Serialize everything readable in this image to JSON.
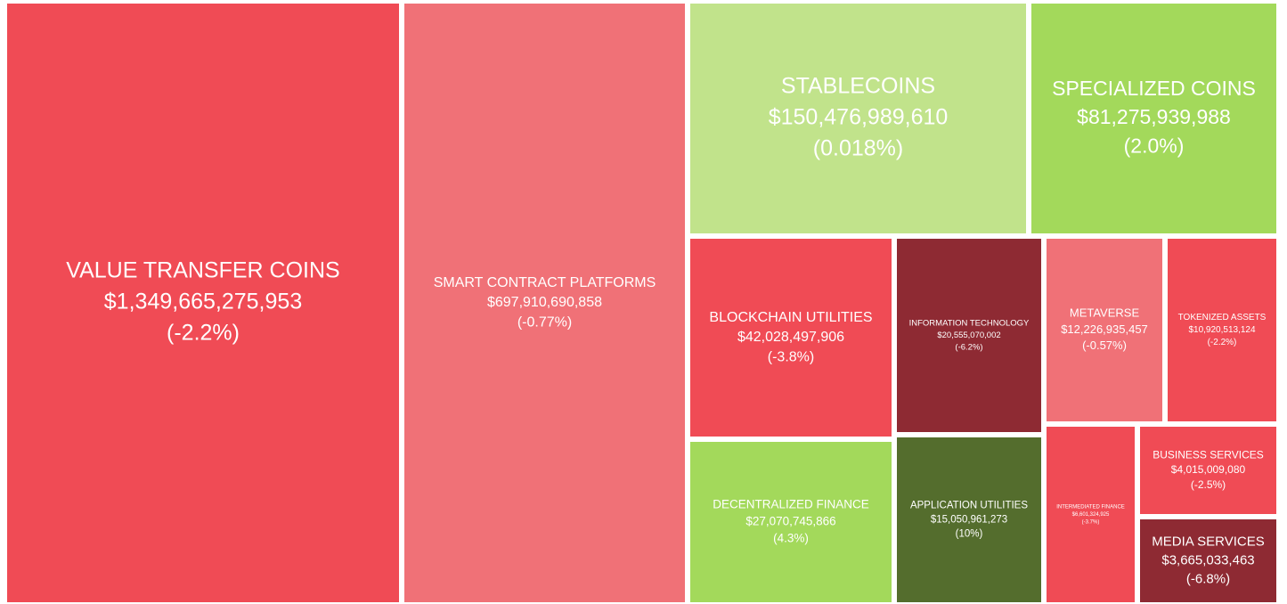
{
  "chart_data": {
    "type": "treemap",
    "categories": [
      "VALUE TRANSFER COINS",
      "SMART CONTRACT PLATFORMS",
      "STABLECOINS",
      "SPECIALIZED COINS",
      "BLOCKCHAIN UTILITIES",
      "INFORMATION TECHNOLOGY",
      "METAVERSE",
      "TOKENIZED ASSETS",
      "DECENTRALIZED FINANCE",
      "APPLICATION UTILITIES",
      "INTERMEDIATED FINANCE",
      "BUSINESS SERVICES",
      "MEDIA SERVICES"
    ],
    "values": [
      1349665275953,
      697910690858,
      150476989610,
      81275939988,
      42028497906,
      20555070002,
      12226935457,
      10920513124,
      27070745866,
      15050961273,
      6601324925,
      4015009080,
      3665033463
    ],
    "value_labels": [
      "$1,349,665,275,953",
      "$697,910,690,858",
      "$150,476,989,610",
      "$81,275,939,988",
      "$42,028,497,906",
      "$20,555,070,002",
      "$12,226,935,457",
      "$10,920,513,124",
      "$27,070,745,866",
      "$15,050,961,273",
      "$6,601,324,925",
      "$4,015,009,080",
      "$3,665,033,463"
    ],
    "changes": [
      -2.2,
      -0.77,
      0.018,
      2.0,
      -3.8,
      -6.2,
      -0.57,
      -2.2,
      4.3,
      10,
      -3.7,
      -2.5,
      -6.8
    ],
    "change_labels": [
      "(-2.2%)",
      "(-0.77%)",
      "(0.018%)",
      "(2.0%)",
      "(-3.8%)",
      "(-6.2%)",
      "(-0.57%)",
      "(-2.2%)",
      "(4.3%)",
      "(10%)",
      "(-3.7%)",
      "(-2.5%)",
      "(-6.8%)"
    ],
    "colors": [
      "#f04b55",
      "#f07177",
      "#c1e38b",
      "#a3d95b",
      "#f04b55",
      "#8e2a33",
      "#f07177",
      "#f04b55",
      "#a3d95b",
      "#546d2d",
      "#f04b55",
      "#f04b55",
      "#8e2a33"
    ]
  }
}
